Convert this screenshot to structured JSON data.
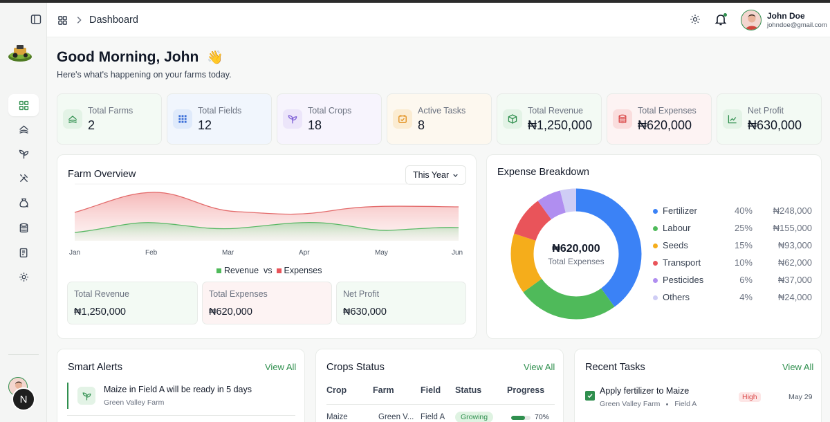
{
  "header": {
    "breadcrumb": "Dashboard",
    "user_name": "John Doe",
    "user_email": "johndoe@gmail.com"
  },
  "greeting": {
    "title": "Good Morning, John",
    "emoji": "👋",
    "subtitle": "Here's what's happening on your farms today."
  },
  "sidebar": {
    "items": [
      {
        "icon": "dashboard-icon",
        "active": true
      },
      {
        "icon": "farms-icon",
        "active": false
      },
      {
        "icon": "crops-icon",
        "active": false
      },
      {
        "icon": "tools-icon",
        "active": false
      },
      {
        "icon": "inventory-icon",
        "active": false
      },
      {
        "icon": "finance-icon",
        "active": false
      },
      {
        "icon": "reports-icon",
        "active": false
      },
      {
        "icon": "settings-icon",
        "active": false
      }
    ],
    "avatar_letter": "N"
  },
  "stats": [
    {
      "label": "Total Farms",
      "value": "2",
      "icon": "farm-icon",
      "bg": "#f3faf4",
      "icon_bg": "#e3f3e6",
      "icon_color": "#2f8f4e"
    },
    {
      "label": "Total Fields",
      "value": "12",
      "icon": "grid-icon",
      "bg": "#f1f6fd",
      "icon_bg": "#dfeafb",
      "icon_color": "#3b6fd8"
    },
    {
      "label": "Total Crops",
      "value": "18",
      "icon": "sprout-icon",
      "bg": "#f7f4fd",
      "icon_bg": "#ece5fa",
      "icon_color": "#7c5cd6"
    },
    {
      "label": "Active Tasks",
      "value": "8",
      "icon": "task-icon",
      "bg": "#fdf8ef",
      "icon_bg": "#fbecd2",
      "icon_color": "#e08a12"
    },
    {
      "label": "Total Revenue",
      "value": "₦1,250,000",
      "icon": "box-icon",
      "bg": "#f3faf4",
      "icon_bg": "#e3f3e6",
      "icon_color": "#2f8f4e"
    },
    {
      "label": "Total Expenses",
      "value": "₦620,000",
      "icon": "coins-icon",
      "bg": "#fdf3f3",
      "icon_bg": "#fadddd",
      "icon_color": "#d94848"
    },
    {
      "label": "Net Profit",
      "value": "₦630,000",
      "icon": "trend-icon",
      "bg": "#f3faf4",
      "icon_bg": "#e3f3e6",
      "icon_color": "#2f8f4e"
    }
  ],
  "overview": {
    "title": "Farm Overview",
    "period": "This Year",
    "legend": {
      "revenue": "Revenue",
      "vs": "vs",
      "expenses": "Expenses"
    },
    "months": [
      "Jan",
      "Feb",
      "Mar",
      "Apr",
      "May",
      "Jun"
    ],
    "summary": [
      {
        "label": "Total Revenue",
        "value": "₦1,250,000",
        "bg": "#f3faf4"
      },
      {
        "label": "Total Expenses",
        "value": "₦620,000",
        "bg": "#fdf3f3"
      },
      {
        "label": "Net Profit",
        "value": "₦630,000",
        "bg": "#f3faf4"
      }
    ]
  },
  "expense": {
    "title": "Expense Breakdown",
    "total_value": "₦620,000",
    "total_label": "Total Expenses",
    "items": [
      {
        "name": "Fertilizer",
        "pct": "40%",
        "amount": "₦248,000",
        "color": "#3b82f6",
        "share": 40
      },
      {
        "name": "Labour",
        "pct": "25%",
        "amount": "₦155,000",
        "color": "#4fba5a",
        "share": 25
      },
      {
        "name": "Seeds",
        "pct": "15%",
        "amount": "₦93,000",
        "color": "#f5ad1b",
        "share": 15
      },
      {
        "name": "Transport",
        "pct": "10%",
        "amount": "₦62,000",
        "color": "#e9545a",
        "share": 10
      },
      {
        "name": "Pesticides",
        "pct": "6%",
        "amount": "₦37,000",
        "color": "#b08ef0",
        "share": 6
      },
      {
        "name": "Others",
        "pct": "4%",
        "amount": "₦24,000",
        "color": "#cfcdf5",
        "share": 4
      }
    ]
  },
  "alerts": {
    "title": "Smart Alerts",
    "view_all": "View All",
    "items": [
      {
        "text": "Maize in Field A will be ready in 5 days",
        "farm": "Green Valley Farm"
      }
    ]
  },
  "crops": {
    "title": "Crops Status",
    "view_all": "View All",
    "columns": [
      "Crop",
      "Farm",
      "Field",
      "Status",
      "Progress"
    ],
    "rows": [
      {
        "crop": "Maize",
        "farm": "Green V...",
        "field": "Field A",
        "status": "Growing",
        "progress": "70%",
        "progress_value": 70
      }
    ]
  },
  "tasks": {
    "title": "Recent Tasks",
    "view_all": "View All",
    "items": [
      {
        "title": "Apply fertilizer to Maize",
        "farm": "Green Valley Farm",
        "field": "Field A",
        "priority": "High",
        "date": "May 29"
      }
    ]
  }
}
